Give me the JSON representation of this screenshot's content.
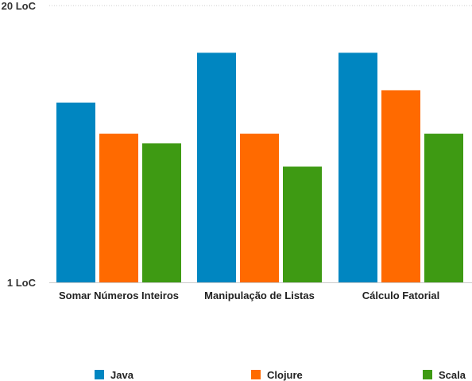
{
  "chart_data": {
    "type": "bar",
    "title": "",
    "xlabel": "",
    "ylabel": "",
    "scale": "log",
    "ylim": [
      1,
      20
    ],
    "y_ticks": [
      "1 LoC",
      "20 LoC"
    ],
    "categories": [
      "Somar Números Inteiros",
      "Manipulação de Listas",
      "Cálculo Fatorial"
    ],
    "series": [
      {
        "name": "Java",
        "color": "#0086c1",
        "values": [
          7,
          12,
          12
        ]
      },
      {
        "name": "Clojure",
        "color": "#ff6a00",
        "values": [
          5,
          5,
          8
        ]
      },
      {
        "name": "Scala",
        "color": "#3e9a13",
        "values": [
          4.5,
          3.5,
          5
        ]
      }
    ],
    "grid": true,
    "legend_position": "bottom"
  }
}
